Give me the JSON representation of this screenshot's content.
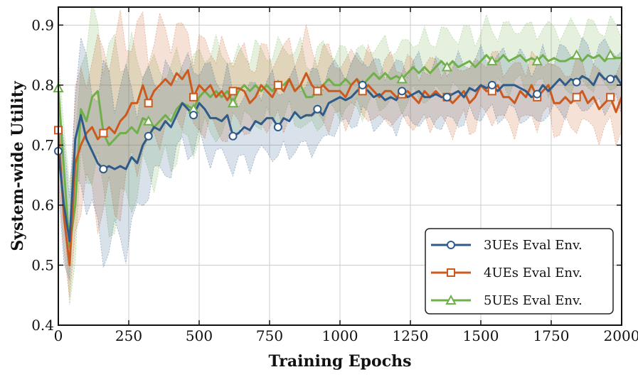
{
  "chart_data": {
    "type": "line",
    "title": "",
    "xlabel": "Training Epochs",
    "ylabel": "System-wide Utility",
    "xlim": [
      0,
      2000
    ],
    "ylim": [
      0.4,
      0.93
    ],
    "xticks": [
      0,
      250,
      500,
      750,
      1000,
      1250,
      1500,
      1750,
      2000
    ],
    "yticks": [
      0.4,
      0.5,
      0.6,
      0.7,
      0.8,
      0.9
    ],
    "grid": true,
    "legend_position": "bottom-right",
    "x": [
      0,
      20,
      40,
      60,
      80,
      100,
      120,
      140,
      160,
      180,
      200,
      220,
      240,
      260,
      280,
      300,
      320,
      340,
      360,
      380,
      400,
      420,
      440,
      460,
      480,
      500,
      520,
      540,
      560,
      580,
      600,
      620,
      640,
      660,
      680,
      700,
      720,
      740,
      760,
      780,
      800,
      820,
      840,
      860,
      880,
      900,
      920,
      940,
      960,
      980,
      1000,
      1020,
      1040,
      1060,
      1080,
      1100,
      1120,
      1140,
      1160,
      1180,
      1200,
      1220,
      1240,
      1260,
      1280,
      1300,
      1320,
      1340,
      1360,
      1380,
      1400,
      1420,
      1440,
      1460,
      1480,
      1500,
      1520,
      1540,
      1560,
      1580,
      1600,
      1620,
      1640,
      1660,
      1680,
      1700,
      1720,
      1740,
      1760,
      1780,
      1800,
      1820,
      1840,
      1860,
      1880,
      1900,
      1920,
      1940,
      1960,
      1980,
      2000
    ],
    "series": [
      {
        "name": "3UEs Eval Env.",
        "color": "#2f5b8a",
        "marker": "circle",
        "marker_indices": [
          0,
          8,
          16,
          24,
          31,
          39,
          46,
          54,
          61,
          69,
          77,
          85,
          92,
          98
        ],
        "values": [
          0.69,
          0.6,
          0.54,
          0.71,
          0.75,
          0.71,
          0.69,
          0.67,
          0.66,
          0.665,
          0.66,
          0.665,
          0.66,
          0.68,
          0.67,
          0.7,
          0.715,
          0.73,
          0.725,
          0.74,
          0.73,
          0.75,
          0.77,
          0.76,
          0.75,
          0.77,
          0.76,
          0.745,
          0.745,
          0.74,
          0.75,
          0.715,
          0.72,
          0.73,
          0.725,
          0.74,
          0.735,
          0.745,
          0.745,
          0.73,
          0.745,
          0.74,
          0.755,
          0.745,
          0.75,
          0.75,
          0.76,
          0.75,
          0.77,
          0.775,
          0.78,
          0.775,
          0.78,
          0.79,
          0.8,
          0.79,
          0.78,
          0.785,
          0.775,
          0.78,
          0.775,
          0.79,
          0.78,
          0.785,
          0.79,
          0.78,
          0.78,
          0.785,
          0.78,
          0.78,
          0.785,
          0.79,
          0.78,
          0.795,
          0.79,
          0.8,
          0.795,
          0.8,
          0.79,
          0.8,
          0.8,
          0.8,
          0.795,
          0.79,
          0.78,
          0.785,
          0.8,
          0.79,
          0.8,
          0.81,
          0.8,
          0.81,
          0.805,
          0.815,
          0.81,
          0.8,
          0.82,
          0.81,
          0.81,
          0.815,
          0.8
        ]
      },
      {
        "name": "4UEs Eval Env.",
        "color": "#cc5a1e",
        "marker": "square",
        "marker_indices": [
          0,
          8,
          16,
          24,
          31,
          39,
          46,
          54,
          61,
          69,
          77,
          85,
          92,
          98
        ],
        "values": [
          0.725,
          0.58,
          0.5,
          0.67,
          0.7,
          0.72,
          0.73,
          0.71,
          0.72,
          0.73,
          0.72,
          0.74,
          0.75,
          0.77,
          0.77,
          0.8,
          0.77,
          0.79,
          0.8,
          0.81,
          0.8,
          0.82,
          0.81,
          0.825,
          0.78,
          0.8,
          0.79,
          0.8,
          0.78,
          0.79,
          0.775,
          0.79,
          0.795,
          0.79,
          0.77,
          0.78,
          0.8,
          0.79,
          0.78,
          0.8,
          0.79,
          0.81,
          0.79,
          0.8,
          0.82,
          0.8,
          0.79,
          0.8,
          0.79,
          0.79,
          0.79,
          0.78,
          0.8,
          0.81,
          0.79,
          0.8,
          0.79,
          0.78,
          0.79,
          0.79,
          0.78,
          0.785,
          0.79,
          0.78,
          0.77,
          0.79,
          0.78,
          0.79,
          0.78,
          0.78,
          0.77,
          0.78,
          0.79,
          0.77,
          0.78,
          0.8,
          0.79,
          0.79,
          0.8,
          0.78,
          0.78,
          0.77,
          0.79,
          0.78,
          0.8,
          0.78,
          0.79,
          0.8,
          0.77,
          0.77,
          0.78,
          0.77,
          0.78,
          0.79,
          0.77,
          0.78,
          0.76,
          0.77,
          0.78,
          0.755,
          0.78
        ]
      },
      {
        "name": "5UEs Eval Env.",
        "color": "#6fb04a",
        "marker": "triangle",
        "marker_indices": [
          0,
          8,
          16,
          24,
          31,
          39,
          46,
          54,
          61,
          69,
          77,
          85,
          92,
          98
        ],
        "values": [
          0.795,
          0.66,
          0.53,
          0.6,
          0.76,
          0.74,
          0.78,
          0.79,
          0.72,
          0.7,
          0.71,
          0.72,
          0.72,
          0.73,
          0.72,
          0.745,
          0.74,
          0.73,
          0.74,
          0.75,
          0.74,
          0.76,
          0.77,
          0.765,
          0.76,
          0.78,
          0.79,
          0.78,
          0.79,
          0.78,
          0.79,
          0.77,
          0.79,
          0.8,
          0.79,
          0.8,
          0.79,
          0.8,
          0.79,
          0.8,
          0.8,
          0.81,
          0.79,
          0.8,
          0.78,
          0.78,
          0.79,
          0.8,
          0.81,
          0.8,
          0.8,
          0.81,
          0.8,
          0.81,
          0.8,
          0.81,
          0.82,
          0.81,
          0.82,
          0.81,
          0.815,
          0.81,
          0.82,
          0.83,
          0.82,
          0.83,
          0.82,
          0.83,
          0.84,
          0.83,
          0.84,
          0.83,
          0.835,
          0.84,
          0.83,
          0.84,
          0.85,
          0.84,
          0.84,
          0.85,
          0.84,
          0.845,
          0.85,
          0.84,
          0.845,
          0.84,
          0.85,
          0.84,
          0.845,
          0.84,
          0.84,
          0.845,
          0.85,
          0.84,
          0.85,
          0.845,
          0.85,
          0.84,
          0.85,
          0.845,
          0.845
        ]
      }
    ],
    "band_width": [
      0.07,
      0.08,
      0.08,
      0.1,
      0.11,
      0.11,
      0.12,
      0.13,
      0.14,
      0.14,
      0.14,
      0.14,
      0.13,
      0.12,
      0.11,
      0.1,
      0.09,
      0.09,
      0.09,
      0.08,
      0.08,
      0.08,
      0.07,
      0.07,
      0.07,
      0.07,
      0.07,
      0.07,
      0.07,
      0.07,
      0.07,
      0.06,
      0.06,
      0.06,
      0.06,
      0.06,
      0.06,
      0.06,
      0.06,
      0.06,
      0.06,
      0.06,
      0.06,
      0.06,
      0.06,
      0.06,
      0.06,
      0.06,
      0.06,
      0.05,
      0.05,
      0.05,
      0.05,
      0.05,
      0.05,
      0.05,
      0.05,
      0.05,
      0.05,
      0.05,
      0.05,
      0.05,
      0.05,
      0.05,
      0.05,
      0.05,
      0.05,
      0.05,
      0.05,
      0.05,
      0.05,
      0.05,
      0.05,
      0.05,
      0.05,
      0.05,
      0.05,
      0.05,
      0.05,
      0.05,
      0.05,
      0.05,
      0.05,
      0.05,
      0.05,
      0.05,
      0.05,
      0.05,
      0.05,
      0.05,
      0.05,
      0.05,
      0.05,
      0.05,
      0.05,
      0.05,
      0.05,
      0.05,
      0.05,
      0.05,
      0.05
    ]
  }
}
